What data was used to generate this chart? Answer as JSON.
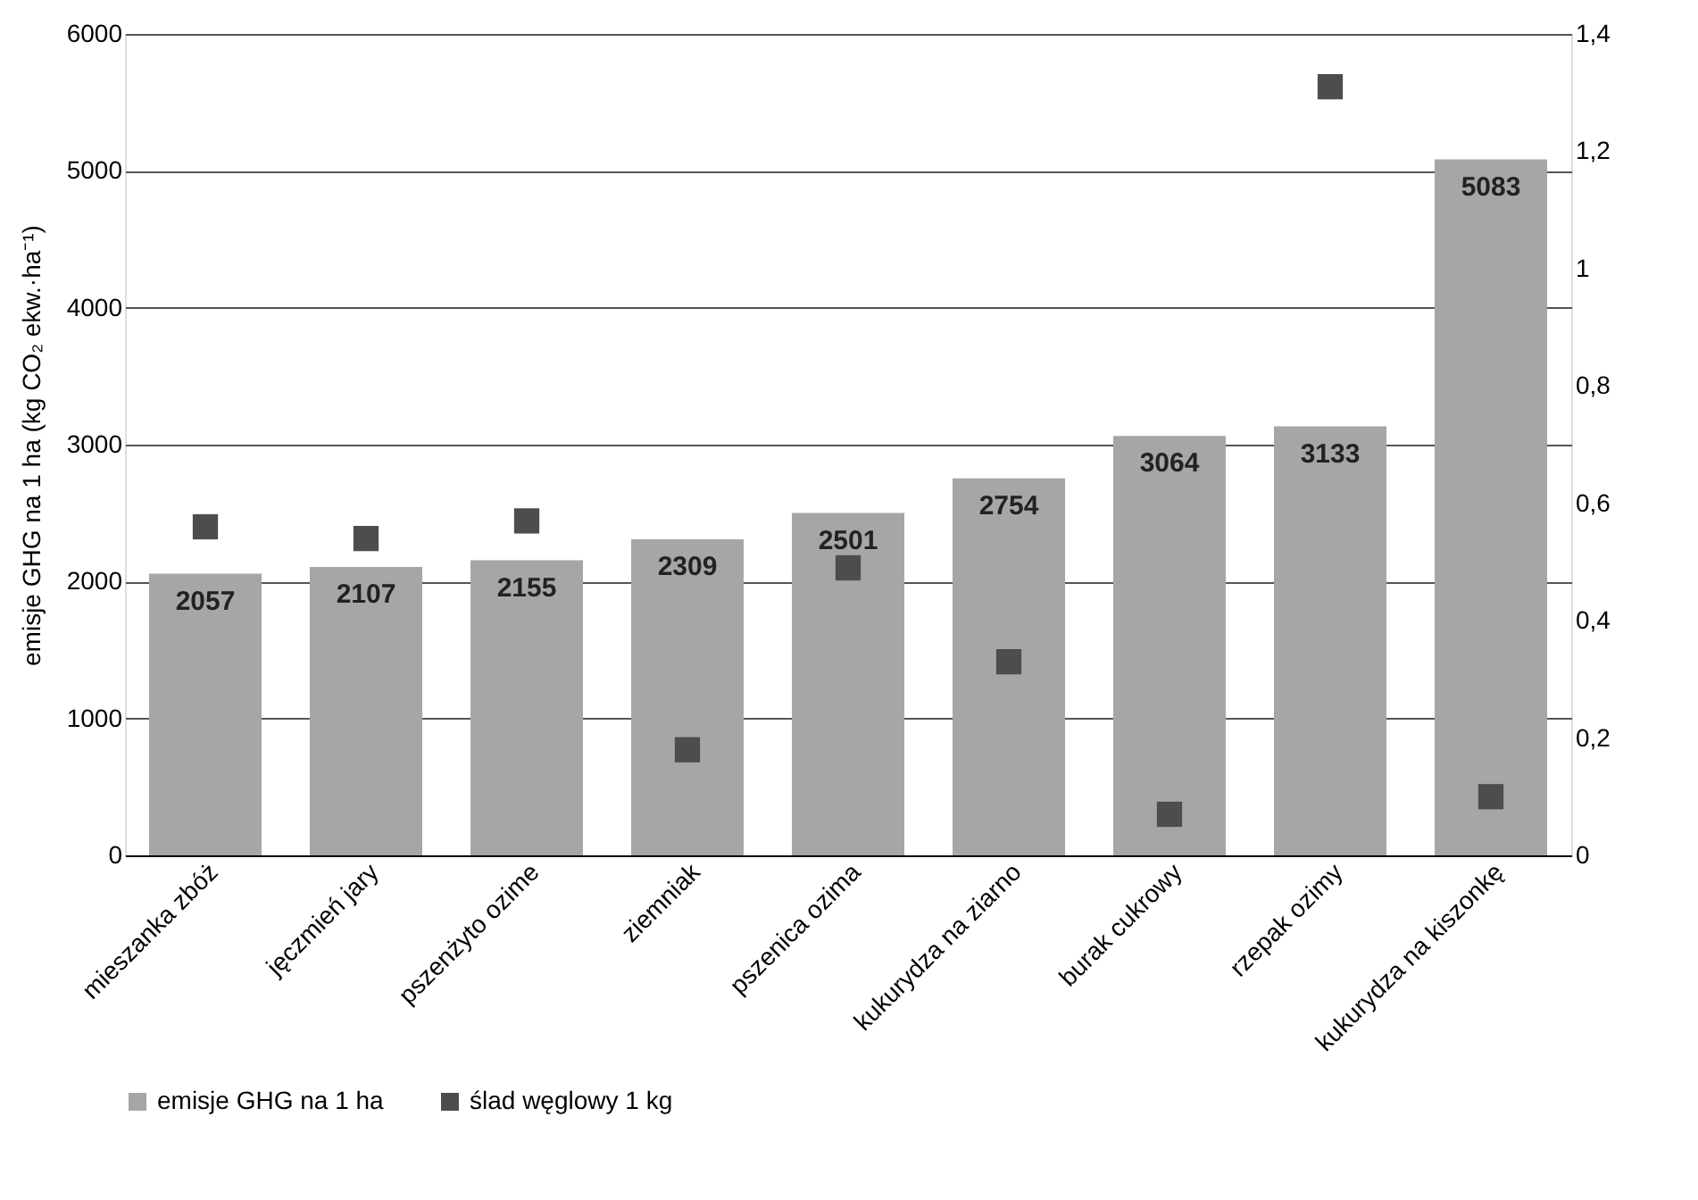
{
  "chart_data": {
    "type": "bar",
    "ylabel": "emisje GHG na 1 ha (kg CO₂ ekw.·ha⁻¹)",
    "categories": [
      "mieszanka zbóż",
      "jęczmień jary",
      "pszenżyto ozime",
      "ziemniak",
      "pszenica ozima",
      "kukurydza na ziarno",
      "burak cukrowy",
      "rzepak ozimy",
      "kukurydza na kiszonkę"
    ],
    "series": [
      {
        "name": "emisje GHG na 1 ha",
        "color": "#a6a6a6",
        "values": [
          2057,
          2107,
          2155,
          2309,
          2501,
          2754,
          3064,
          3133,
          5083
        ],
        "value_labels": [
          "2057",
          "2107",
          "2155",
          "2309",
          "2501",
          "2754",
          "3064",
          "3133",
          "5083"
        ]
      },
      {
        "name": "ślad węglowy 1 kg",
        "type": "scatter",
        "axis": "y2",
        "color": "#4d4d4d",
        "marker": "square",
        "values": [
          0.56,
          0.54,
          0.57,
          0.18,
          0.49,
          0.33,
          0.07,
          1.31,
          0.1
        ]
      }
    ],
    "ylim": [
      0,
      6000
    ],
    "yticks": [
      0,
      1000,
      2000,
      3000,
      4000,
      5000,
      6000
    ],
    "y2lim": [
      0,
      1.4
    ],
    "y2ticks": [
      0,
      {
        "value": 0.2,
        "label": "0,2"
      },
      {
        "value": 0.4,
        "label": "0,4"
      },
      {
        "value": 0.6,
        "label": "0,6"
      },
      {
        "value": 0.8,
        "label": "0,8"
      },
      1,
      {
        "value": 1.2,
        "label": "1,2"
      },
      {
        "value": 1.4,
        "label": "1,4"
      }
    ],
    "grid": "y",
    "legend": "bottom"
  }
}
